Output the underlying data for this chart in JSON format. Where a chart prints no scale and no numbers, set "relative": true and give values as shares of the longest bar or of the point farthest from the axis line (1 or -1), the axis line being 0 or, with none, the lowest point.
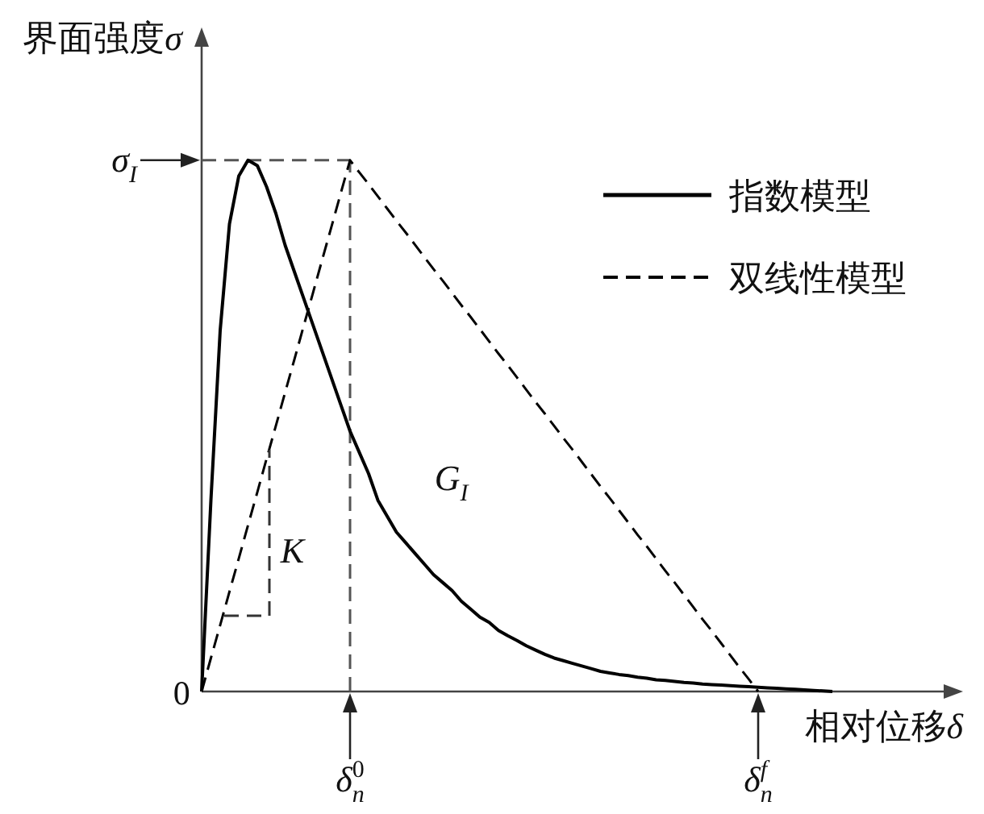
{
  "chart_data": {
    "type": "line",
    "relative": true,
    "xlabel": "相对位移δ",
    "ylabel": "界面强度σ",
    "legend": "top right",
    "categories": [
      null,
      null,
      null,
      null,
      null,
      null,
      null,
      null,
      null,
      null,
      null,
      null,
      null,
      null,
      null,
      null,
      "δ$^{0}$$_{n}$",
      null,
      null,
      null,
      null,
      null,
      null,
      null,
      null,
      null,
      null,
      null,
      null,
      null,
      null,
      null,
      null,
      null,
      null,
      null,
      null,
      null,
      null,
      null,
      null,
      null,
      null,
      null,
      null,
      null,
      null,
      null,
      null,
      null,
      null,
      null,
      null,
      null,
      null,
      null,
      null,
      null,
      null,
      null,
      "δ$^{f}$$_{n}$",
      null,
      null,
      null,
      null,
      null,
      null,
      null,
      null
    ],
    "series": [
      {
        "name": "指数模型",
        "color": "#000000",
        "line_style": "solid",
        "values": [
          0,
          0.36,
          0.68,
          0.88,
          0.97,
          1,
          0.99,
          0.95,
          0.9,
          0.84,
          0.79,
          0.74,
          0.69,
          0.64,
          0.59,
          0.54,
          0.49,
          0.45,
          0.41,
          0.36,
          0.33,
          0.3,
          0.28,
          0.26,
          0.24,
          0.22,
          0.205,
          0.19,
          0.17,
          0.155,
          0.14,
          0.13,
          0.115,
          0.105,
          0.096,
          0.086,
          0.078,
          0.07,
          0.063,
          0.058,
          0.053,
          0.048,
          0.043,
          0.038,
          0.035,
          0.032,
          0.03,
          0.027,
          0.025,
          0.022,
          0.021,
          0.019,
          0.017,
          0.016,
          0.014,
          0.013,
          0.012,
          0.011,
          0.01,
          0.009,
          0.008,
          0.007,
          0.006,
          0.005,
          0.004,
          0.003,
          0.002,
          0.001,
          0
        ]
      },
      {
        "name": "双线性模型",
        "color": "#000000",
        "line_style": "dashed",
        "values": [
          0,
          0.063,
          0.125,
          0.188,
          0.25,
          0.313,
          0.375,
          0.438,
          0.5,
          0.563,
          0.625,
          0.688,
          0.75,
          0.813,
          0.875,
          0.938,
          1,
          0.977,
          0.955,
          0.932,
          0.909,
          0.886,
          0.864,
          0.841,
          0.818,
          0.795,
          0.773,
          0.75,
          0.727,
          0.705,
          0.682,
          0.659,
          0.636,
          0.614,
          0.591,
          0.568,
          0.545,
          0.523,
          0.5,
          0.477,
          0.455,
          0.432,
          0.409,
          0.386,
          0.364,
          0.341,
          0.318,
          0.295,
          0.273,
          0.25,
          0.227,
          0.205,
          0.182,
          0.159,
          0.136,
          0.114,
          0.091,
          0.068,
          0.045,
          0.023,
          0,
          null,
          null,
          null,
          null,
          null,
          null,
          null,
          null
        ]
      }
    ],
    "ref_lines": [
      {
        "axis": "y",
        "value": 1,
        "label": "σ$_{I}$",
        "color": "#555555",
        "line_style": "dashed"
      },
      {
        "axis": "x",
        "value": "δ$^{0}$$_{n}$",
        "color": "#555555",
        "line_style": "dashed"
      }
    ],
    "annotations": [
      "0",
      "K",
      "G$_{I}$"
    ]
  }
}
